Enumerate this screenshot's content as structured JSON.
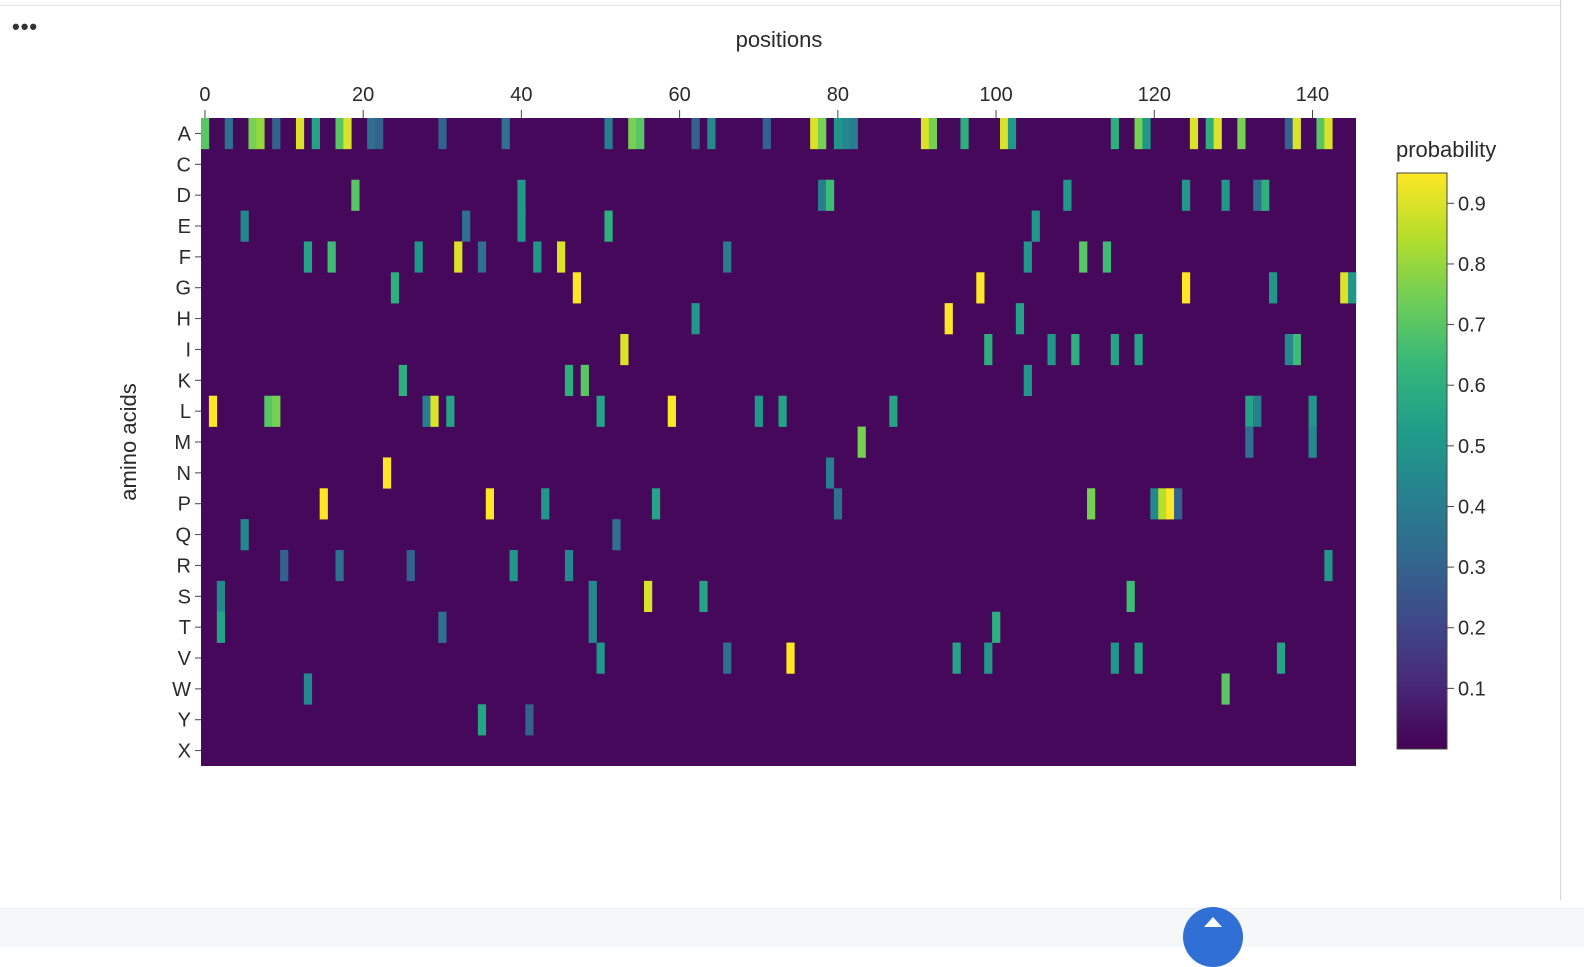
{
  "menu": {
    "more_label": "•••",
    "more_icon": "ellipsis-icon"
  },
  "chart_data": {
    "type": "heatmap",
    "title": "",
    "xlabel": "positions",
    "ylabel": "amino acids",
    "x_axis_side": "top",
    "x_range": [
      -0.5,
      145.5
    ],
    "x_ticks": [
      0,
      20,
      40,
      60,
      80,
      100,
      120,
      140
    ],
    "y_categories": [
      "A",
      "C",
      "D",
      "E",
      "F",
      "G",
      "H",
      "I",
      "K",
      "L",
      "M",
      "N",
      "P",
      "Q",
      "R",
      "S",
      "T",
      "V",
      "W",
      "Y",
      "X"
    ],
    "colorbar": {
      "title": "probability",
      "range": [
        0.0,
        0.95
      ],
      "ticks": [
        0.9,
        0.8,
        0.7,
        0.6,
        0.5,
        0.4,
        0.3,
        0.2,
        0.1
      ],
      "colorscale": [
        "#440154",
        "#482878",
        "#3e4989",
        "#31688e",
        "#26828e",
        "#1f9e89",
        "#35b779",
        "#6ece58",
        "#b5de2b",
        "#fde725"
      ]
    },
    "background_level": 0.02,
    "highlights": [
      {
        "aa": "A",
        "pos": 0,
        "v": 0.7
      },
      {
        "aa": "A",
        "pos": 3,
        "v": 0.35
      },
      {
        "aa": "A",
        "pos": 6,
        "v": 0.75
      },
      {
        "aa": "A",
        "pos": 7,
        "v": 0.8
      },
      {
        "aa": "A",
        "pos": 9,
        "v": 0.3
      },
      {
        "aa": "A",
        "pos": 12,
        "v": 0.9
      },
      {
        "aa": "A",
        "pos": 14,
        "v": 0.55
      },
      {
        "aa": "A",
        "pos": 17,
        "v": 0.7
      },
      {
        "aa": "A",
        "pos": 18,
        "v": 0.9
      },
      {
        "aa": "A",
        "pos": 21,
        "v": 0.35
      },
      {
        "aa": "A",
        "pos": 22,
        "v": 0.3
      },
      {
        "aa": "A",
        "pos": 30,
        "v": 0.3
      },
      {
        "aa": "A",
        "pos": 38,
        "v": 0.35
      },
      {
        "aa": "A",
        "pos": 51,
        "v": 0.4
      },
      {
        "aa": "A",
        "pos": 54,
        "v": 0.75
      },
      {
        "aa": "A",
        "pos": 55,
        "v": 0.7
      },
      {
        "aa": "A",
        "pos": 62,
        "v": 0.3
      },
      {
        "aa": "A",
        "pos": 64,
        "v": 0.45
      },
      {
        "aa": "A",
        "pos": 71,
        "v": 0.3
      },
      {
        "aa": "A",
        "pos": 77,
        "v": 0.9
      },
      {
        "aa": "A",
        "pos": 78,
        "v": 0.75
      },
      {
        "aa": "A",
        "pos": 80,
        "v": 0.5
      },
      {
        "aa": "A",
        "pos": 81,
        "v": 0.45
      },
      {
        "aa": "A",
        "pos": 82,
        "v": 0.4
      },
      {
        "aa": "A",
        "pos": 91,
        "v": 0.9
      },
      {
        "aa": "A",
        "pos": 92,
        "v": 0.75
      },
      {
        "aa": "A",
        "pos": 96,
        "v": 0.6
      },
      {
        "aa": "A",
        "pos": 101,
        "v": 0.9
      },
      {
        "aa": "A",
        "pos": 102,
        "v": 0.5
      },
      {
        "aa": "A",
        "pos": 115,
        "v": 0.6
      },
      {
        "aa": "A",
        "pos": 118,
        "v": 0.75
      },
      {
        "aa": "A",
        "pos": 119,
        "v": 0.5
      },
      {
        "aa": "A",
        "pos": 125,
        "v": 0.9
      },
      {
        "aa": "A",
        "pos": 127,
        "v": 0.6
      },
      {
        "aa": "A",
        "pos": 128,
        "v": 0.9
      },
      {
        "aa": "A",
        "pos": 131,
        "v": 0.75
      },
      {
        "aa": "A",
        "pos": 137,
        "v": 0.3
      },
      {
        "aa": "A",
        "pos": 138,
        "v": 0.9
      },
      {
        "aa": "A",
        "pos": 141,
        "v": 0.7
      },
      {
        "aa": "A",
        "pos": 142,
        "v": 0.9
      },
      {
        "aa": "D",
        "pos": 19,
        "v": 0.7
      },
      {
        "aa": "D",
        "pos": 40,
        "v": 0.5
      },
      {
        "aa": "D",
        "pos": 78,
        "v": 0.4
      },
      {
        "aa": "D",
        "pos": 79,
        "v": 0.65
      },
      {
        "aa": "D",
        "pos": 109,
        "v": 0.5
      },
      {
        "aa": "D",
        "pos": 124,
        "v": 0.5
      },
      {
        "aa": "D",
        "pos": 129,
        "v": 0.5
      },
      {
        "aa": "D",
        "pos": 134,
        "v": 0.6
      },
      {
        "aa": "D",
        "pos": 133,
        "v": 0.35
      },
      {
        "aa": "E",
        "pos": 5,
        "v": 0.45
      },
      {
        "aa": "E",
        "pos": 33,
        "v": 0.35
      },
      {
        "aa": "E",
        "pos": 40,
        "v": 0.5
      },
      {
        "aa": "E",
        "pos": 51,
        "v": 0.6
      },
      {
        "aa": "E",
        "pos": 105,
        "v": 0.5
      },
      {
        "aa": "F",
        "pos": 13,
        "v": 0.55
      },
      {
        "aa": "F",
        "pos": 16,
        "v": 0.65
      },
      {
        "aa": "F",
        "pos": 27,
        "v": 0.5
      },
      {
        "aa": "F",
        "pos": 32,
        "v": 0.9
      },
      {
        "aa": "F",
        "pos": 35,
        "v": 0.35
      },
      {
        "aa": "F",
        "pos": 42,
        "v": 0.5
      },
      {
        "aa": "F",
        "pos": 45,
        "v": 0.9
      },
      {
        "aa": "F",
        "pos": 66,
        "v": 0.4
      },
      {
        "aa": "F",
        "pos": 104,
        "v": 0.5
      },
      {
        "aa": "F",
        "pos": 111,
        "v": 0.7
      },
      {
        "aa": "F",
        "pos": 114,
        "v": 0.65
      },
      {
        "aa": "G",
        "pos": 24,
        "v": 0.6
      },
      {
        "aa": "G",
        "pos": 47,
        "v": 0.95
      },
      {
        "aa": "G",
        "pos": 98,
        "v": 0.95
      },
      {
        "aa": "G",
        "pos": 124,
        "v": 0.95
      },
      {
        "aa": "G",
        "pos": 135,
        "v": 0.5
      },
      {
        "aa": "G",
        "pos": 144,
        "v": 0.9
      },
      {
        "aa": "G",
        "pos": 145,
        "v": 0.5
      },
      {
        "aa": "H",
        "pos": 62,
        "v": 0.5
      },
      {
        "aa": "H",
        "pos": 94,
        "v": 0.95
      },
      {
        "aa": "H",
        "pos": 103,
        "v": 0.55
      },
      {
        "aa": "I",
        "pos": 53,
        "v": 0.9
      },
      {
        "aa": "I",
        "pos": 99,
        "v": 0.6
      },
      {
        "aa": "I",
        "pos": 107,
        "v": 0.5
      },
      {
        "aa": "I",
        "pos": 110,
        "v": 0.6
      },
      {
        "aa": "I",
        "pos": 115,
        "v": 0.55
      },
      {
        "aa": "I",
        "pos": 118,
        "v": 0.55
      },
      {
        "aa": "I",
        "pos": 138,
        "v": 0.65
      },
      {
        "aa": "I",
        "pos": 137,
        "v": 0.45
      },
      {
        "aa": "K",
        "pos": 25,
        "v": 0.6
      },
      {
        "aa": "K",
        "pos": 46,
        "v": 0.6
      },
      {
        "aa": "K",
        "pos": 48,
        "v": 0.7
      },
      {
        "aa": "K",
        "pos": 104,
        "v": 0.5
      },
      {
        "aa": "L",
        "pos": 1,
        "v": 0.95
      },
      {
        "aa": "L",
        "pos": 8,
        "v": 0.7
      },
      {
        "aa": "L",
        "pos": 9,
        "v": 0.75
      },
      {
        "aa": "L",
        "pos": 28,
        "v": 0.4
      },
      {
        "aa": "L",
        "pos": 29,
        "v": 0.9
      },
      {
        "aa": "L",
        "pos": 31,
        "v": 0.55
      },
      {
        "aa": "L",
        "pos": 50,
        "v": 0.55
      },
      {
        "aa": "L",
        "pos": 59,
        "v": 0.95
      },
      {
        "aa": "L",
        "pos": 70,
        "v": 0.5
      },
      {
        "aa": "L",
        "pos": 73,
        "v": 0.55
      },
      {
        "aa": "L",
        "pos": 87,
        "v": 0.55
      },
      {
        "aa": "L",
        "pos": 132,
        "v": 0.55
      },
      {
        "aa": "L",
        "pos": 133,
        "v": 0.4
      },
      {
        "aa": "L",
        "pos": 140,
        "v": 0.5
      },
      {
        "aa": "M",
        "pos": 83,
        "v": 0.75
      },
      {
        "aa": "M",
        "pos": 132,
        "v": 0.35
      },
      {
        "aa": "M",
        "pos": 140,
        "v": 0.45
      },
      {
        "aa": "N",
        "pos": 23,
        "v": 0.95
      },
      {
        "aa": "N",
        "pos": 79,
        "v": 0.4
      },
      {
        "aa": "P",
        "pos": 15,
        "v": 0.95
      },
      {
        "aa": "P",
        "pos": 36,
        "v": 0.95
      },
      {
        "aa": "P",
        "pos": 43,
        "v": 0.5
      },
      {
        "aa": "P",
        "pos": 57,
        "v": 0.55
      },
      {
        "aa": "P",
        "pos": 80,
        "v": 0.35
      },
      {
        "aa": "P",
        "pos": 112,
        "v": 0.75
      },
      {
        "aa": "P",
        "pos": 120,
        "v": 0.45
      },
      {
        "aa": "P",
        "pos": 121,
        "v": 0.85
      },
      {
        "aa": "P",
        "pos": 122,
        "v": 0.95
      },
      {
        "aa": "P",
        "pos": 123,
        "v": 0.3
      },
      {
        "aa": "Q",
        "pos": 5,
        "v": 0.45
      },
      {
        "aa": "Q",
        "pos": 52,
        "v": 0.35
      },
      {
        "aa": "R",
        "pos": 10,
        "v": 0.3
      },
      {
        "aa": "R",
        "pos": 17,
        "v": 0.35
      },
      {
        "aa": "R",
        "pos": 26,
        "v": 0.3
      },
      {
        "aa": "R",
        "pos": 39,
        "v": 0.5
      },
      {
        "aa": "R",
        "pos": 46,
        "v": 0.45
      },
      {
        "aa": "R",
        "pos": 142,
        "v": 0.5
      },
      {
        "aa": "S",
        "pos": 2,
        "v": 0.45
      },
      {
        "aa": "S",
        "pos": 49,
        "v": 0.45
      },
      {
        "aa": "S",
        "pos": 56,
        "v": 0.9
      },
      {
        "aa": "S",
        "pos": 63,
        "v": 0.55
      },
      {
        "aa": "S",
        "pos": 117,
        "v": 0.65
      },
      {
        "aa": "T",
        "pos": 2,
        "v": 0.55
      },
      {
        "aa": "T",
        "pos": 30,
        "v": 0.35
      },
      {
        "aa": "T",
        "pos": 49,
        "v": 0.45
      },
      {
        "aa": "T",
        "pos": 100,
        "v": 0.6
      },
      {
        "aa": "V",
        "pos": 50,
        "v": 0.5
      },
      {
        "aa": "V",
        "pos": 66,
        "v": 0.35
      },
      {
        "aa": "V",
        "pos": 74,
        "v": 0.95
      },
      {
        "aa": "V",
        "pos": 95,
        "v": 0.55
      },
      {
        "aa": "V",
        "pos": 99,
        "v": 0.5
      },
      {
        "aa": "V",
        "pos": 115,
        "v": 0.5
      },
      {
        "aa": "V",
        "pos": 118,
        "v": 0.55
      },
      {
        "aa": "V",
        "pos": 136,
        "v": 0.55
      },
      {
        "aa": "W",
        "pos": 13,
        "v": 0.45
      },
      {
        "aa": "W",
        "pos": 129,
        "v": 0.7
      },
      {
        "aa": "Y",
        "pos": 35,
        "v": 0.55
      },
      {
        "aa": "Y",
        "pos": 41,
        "v": 0.3
      }
    ]
  }
}
